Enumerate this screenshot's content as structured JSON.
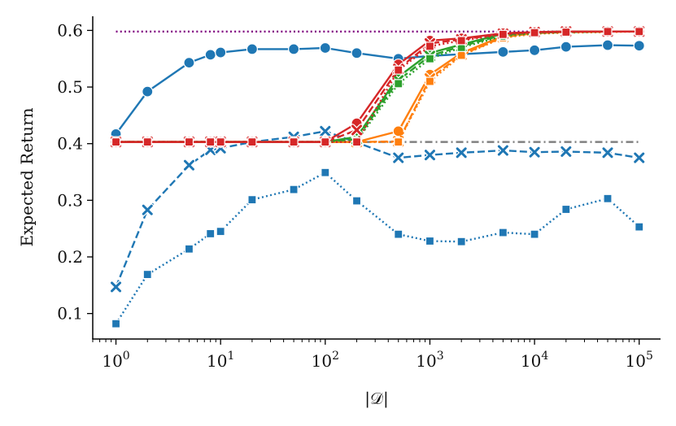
{
  "chart_data": {
    "type": "line",
    "title": "",
    "xlabel": "|𝒟|",
    "ylabel": "Expected Return",
    "xscale": "log",
    "xlim": [
      0.6,
      160000
    ],
    "ylim": [
      0.055,
      0.625
    ],
    "grid": false,
    "legend": "none",
    "x_ticks": [
      {
        "value": 1,
        "base": "10",
        "exp": "0"
      },
      {
        "value": 10,
        "base": "10",
        "exp": "1"
      },
      {
        "value": 100,
        "base": "10",
        "exp": "2"
      },
      {
        "value": 1000,
        "base": "10",
        "exp": "3"
      },
      {
        "value": 10000,
        "base": "10",
        "exp": "4"
      },
      {
        "value": 100000,
        "base": "10",
        "exp": "5"
      }
    ],
    "y_ticks": [
      {
        "value": 0.1,
        "label": "0.1"
      },
      {
        "value": 0.2,
        "label": "0.2"
      },
      {
        "value": 0.3,
        "label": "0.3"
      },
      {
        "value": 0.4,
        "label": "0.4"
      },
      {
        "value": 0.5,
        "label": "0.5"
      },
      {
        "value": 0.6,
        "label": "0.6"
      }
    ],
    "reference_lines": [
      {
        "name": "upper-reference",
        "y": 0.598,
        "color": "#800080",
        "dash": "dotted"
      },
      {
        "name": "lower-reference",
        "y": 0.403,
        "color": "#808080",
        "dash": "dashdot"
      }
    ],
    "series": [
      {
        "name": "blue-circle-solid",
        "color": "#1f77b4",
        "marker": "circle",
        "dash": "solid",
        "x": [
          1,
          2,
          5,
          8,
          10,
          20,
          50,
          100,
          200,
          500,
          1000,
          2000,
          5000,
          10000,
          20000,
          50000,
          100000
        ],
        "y": [
          0.417,
          0.492,
          0.543,
          0.557,
          0.561,
          0.567,
          0.567,
          0.569,
          0.56,
          0.55,
          0.555,
          0.558,
          0.562,
          0.565,
          0.571,
          0.574,
          0.573
        ]
      },
      {
        "name": "blue-x-dashed",
        "color": "#1f77b4",
        "marker": "x",
        "dash": "dashed",
        "x": [
          1,
          2,
          5,
          8,
          10,
          20,
          50,
          100,
          200,
          500,
          1000,
          2000,
          5000,
          10000,
          20000,
          50000,
          100000
        ],
        "y": [
          0.147,
          0.283,
          0.362,
          0.389,
          0.392,
          0.403,
          0.412,
          0.422,
          0.402,
          0.375,
          0.38,
          0.384,
          0.388,
          0.385,
          0.386,
          0.384,
          0.375
        ]
      },
      {
        "name": "blue-square-dotted",
        "color": "#1f77b4",
        "marker": "square",
        "dash": "dotted",
        "x": [
          1,
          2,
          5,
          8,
          10,
          20,
          50,
          100,
          200,
          500,
          1000,
          2000,
          5000,
          10000,
          20000,
          50000,
          100000
        ],
        "y": [
          0.082,
          0.169,
          0.214,
          0.241,
          0.245,
          0.301,
          0.319,
          0.349,
          0.299,
          0.24,
          0.228,
          0.227,
          0.243,
          0.24,
          0.284,
          0.303,
          0.253
        ]
      },
      {
        "name": "orange-circle-solid",
        "color": "#ff7f0e",
        "marker": "circle",
        "dash": "solid",
        "x": [
          1,
          2,
          5,
          8,
          10,
          20,
          50,
          100,
          200,
          500,
          1000,
          2000,
          5000,
          10000,
          20000,
          50000,
          100000
        ],
        "y": [
          0.403,
          0.403,
          0.403,
          0.403,
          0.403,
          0.403,
          0.403,
          0.403,
          0.403,
          0.422,
          0.522,
          0.56,
          0.59,
          0.596,
          0.597,
          0.598,
          0.598
        ]
      },
      {
        "name": "orange-x-dashed",
        "color": "#ff7f0e",
        "marker": "x",
        "dash": "dashed",
        "x": [
          1,
          2,
          5,
          8,
          10,
          20,
          50,
          100,
          200,
          500,
          1000,
          2000,
          5000,
          10000,
          20000,
          50000,
          100000
        ],
        "y": [
          0.403,
          0.403,
          0.403,
          0.403,
          0.403,
          0.403,
          0.403,
          0.403,
          0.403,
          0.404,
          0.515,
          0.557,
          0.588,
          0.595,
          0.597,
          0.598,
          0.598
        ]
      },
      {
        "name": "orange-square-dotted",
        "color": "#ff7f0e",
        "marker": "square",
        "dash": "dotted",
        "x": [
          1,
          2,
          5,
          8,
          10,
          20,
          50,
          100,
          200,
          500,
          1000,
          2000,
          5000,
          10000,
          20000,
          50000,
          100000
        ],
        "y": [
          0.403,
          0.403,
          0.403,
          0.403,
          0.403,
          0.403,
          0.403,
          0.403,
          0.403,
          0.403,
          0.51,
          0.556,
          0.587,
          0.594,
          0.596,
          0.597,
          0.598
        ]
      },
      {
        "name": "green-circle-solid",
        "color": "#2ca02c",
        "marker": "circle",
        "dash": "solid",
        "x": [
          1,
          2,
          5,
          8,
          10,
          20,
          50,
          100,
          200,
          500,
          1000,
          2000,
          5000,
          10000,
          20000,
          50000,
          100000
        ],
        "y": [
          0.403,
          0.403,
          0.403,
          0.403,
          0.403,
          0.403,
          0.403,
          0.403,
          0.412,
          0.518,
          0.56,
          0.575,
          0.594,
          0.597,
          0.598,
          0.598,
          0.598
        ]
      },
      {
        "name": "green-x-dashed",
        "color": "#2ca02c",
        "marker": "x",
        "dash": "dashed",
        "x": [
          1,
          2,
          5,
          8,
          10,
          20,
          50,
          100,
          200,
          500,
          1000,
          2000,
          5000,
          10000,
          20000,
          50000,
          100000
        ],
        "y": [
          0.403,
          0.403,
          0.403,
          0.403,
          0.403,
          0.403,
          0.403,
          0.403,
          0.408,
          0.512,
          0.555,
          0.572,
          0.592,
          0.596,
          0.597,
          0.598,
          0.598
        ]
      },
      {
        "name": "green-square-dotted",
        "color": "#2ca02c",
        "marker": "square",
        "dash": "dotted",
        "x": [
          1,
          2,
          5,
          8,
          10,
          20,
          50,
          100,
          200,
          500,
          1000,
          2000,
          5000,
          10000,
          20000,
          50000,
          100000
        ],
        "y": [
          0.403,
          0.403,
          0.403,
          0.403,
          0.403,
          0.403,
          0.403,
          0.403,
          0.405,
          0.506,
          0.55,
          0.57,
          0.59,
          0.595,
          0.597,
          0.598,
          0.598
        ]
      },
      {
        "name": "red-circle-solid",
        "color": "#d62728",
        "marker": "circle",
        "dash": "solid",
        "x": [
          1,
          2,
          5,
          8,
          10,
          20,
          50,
          100,
          200,
          500,
          1000,
          2000,
          5000,
          10000,
          20000,
          50000,
          100000
        ],
        "y": [
          0.403,
          0.403,
          0.403,
          0.403,
          0.403,
          0.403,
          0.403,
          0.403,
          0.436,
          0.54,
          0.582,
          0.586,
          0.595,
          0.597,
          0.598,
          0.598,
          0.598
        ]
      },
      {
        "name": "red-x-dashed",
        "color": "#d62728",
        "marker": "x",
        "dash": "dashed",
        "x": [
          1,
          2,
          5,
          8,
          10,
          20,
          50,
          100,
          200,
          500,
          1000,
          2000,
          5000,
          10000,
          20000,
          50000,
          100000
        ],
        "y": [
          0.403,
          0.403,
          0.403,
          0.403,
          0.403,
          0.403,
          0.403,
          0.403,
          0.424,
          0.532,
          0.577,
          0.584,
          0.594,
          0.597,
          0.598,
          0.598,
          0.598
        ]
      },
      {
        "name": "red-square-dotted",
        "color": "#d62728",
        "marker": "square",
        "dash": "dotted",
        "x": [
          1,
          2,
          5,
          8,
          10,
          20,
          50,
          100,
          200,
          500,
          1000,
          2000,
          5000,
          10000,
          20000,
          50000,
          100000
        ],
        "y": [
          0.403,
          0.403,
          0.403,
          0.403,
          0.403,
          0.403,
          0.403,
          0.403,
          0.403,
          0.53,
          0.572,
          0.582,
          0.593,
          0.596,
          0.597,
          0.598,
          0.598
        ]
      }
    ]
  }
}
